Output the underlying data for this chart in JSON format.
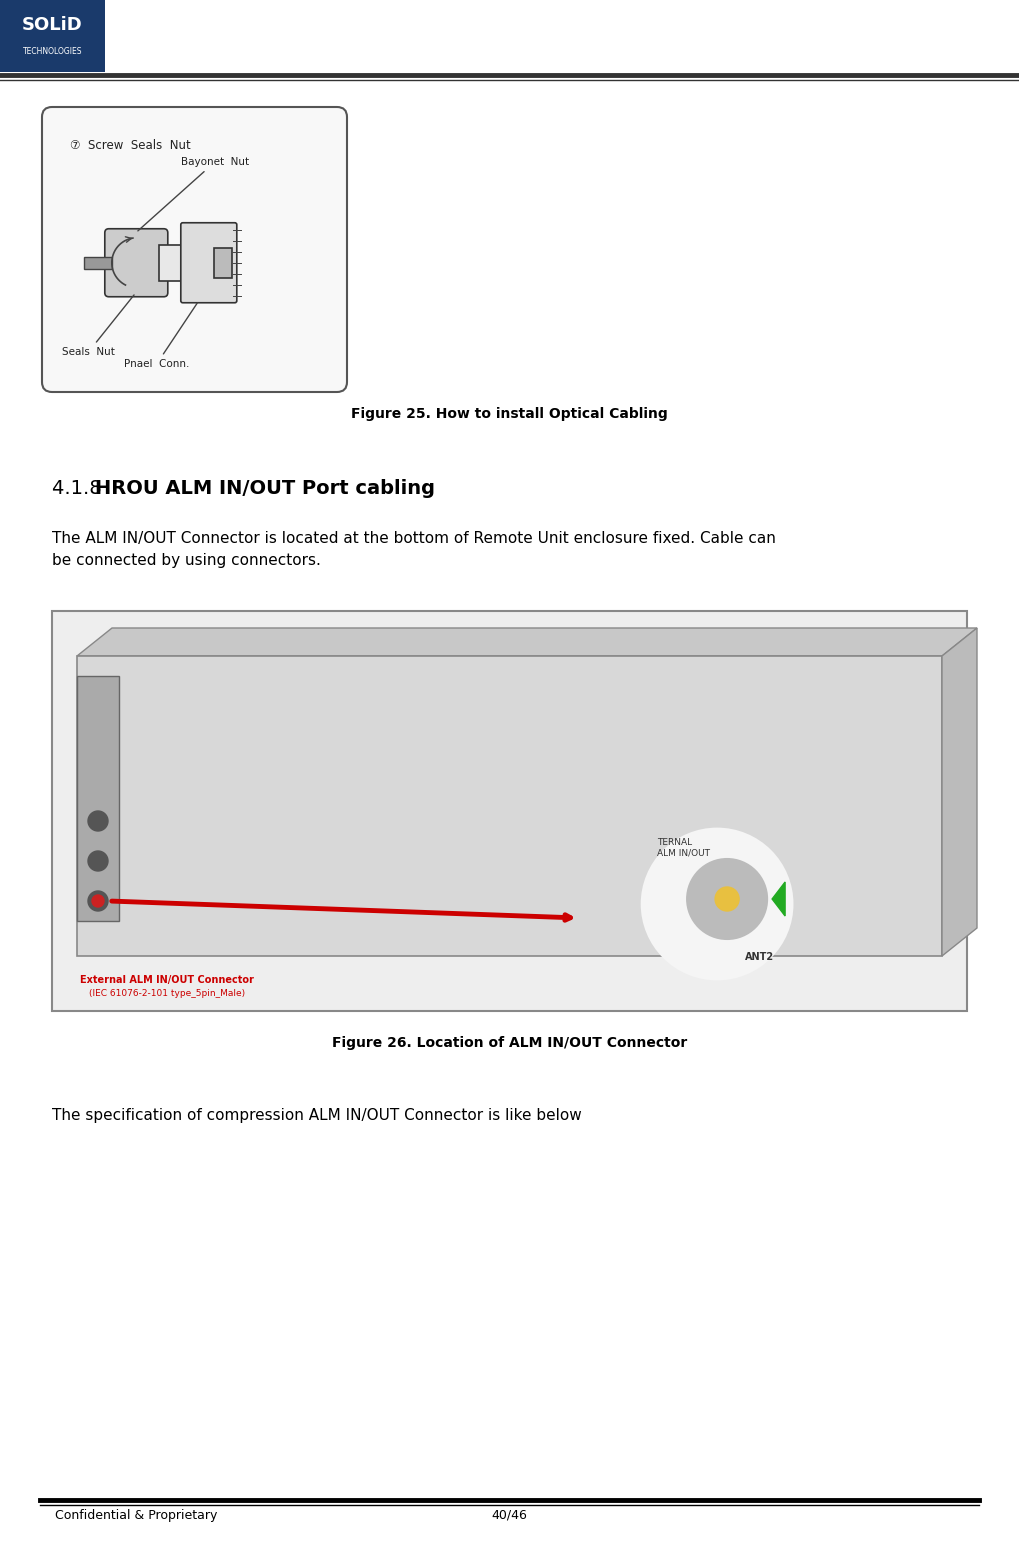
{
  "page_width": 10.19,
  "page_height": 15.64,
  "bg_color": "#ffffff",
  "logo_box_color": "#1a3a6b",
  "logo_text_color": "#ffffff",
  "footer_left": "Confidential & Proprietary",
  "footer_right": "40/46",
  "fig25_caption": "Figure 25. How to install Optical Cabling",
  "fig26_caption": "Figure 26. Location of ALM IN/OUT Connector",
  "section_title_prefix": "4.1.8",
  "section_title": "HROU ALM IN/OUT Port cabling",
  "body_text1": "The ALM IN/OUT Connector is located at the bottom of Remote Unit enclosure fixed. Cable can\nbe connected by using connectors.",
  "body_text2": "The specification of compression ALM IN/OUT Connector is like below",
  "title_font_size": 14,
  "body_font_size": 11,
  "caption_font_size": 10,
  "footer_font_size": 9
}
